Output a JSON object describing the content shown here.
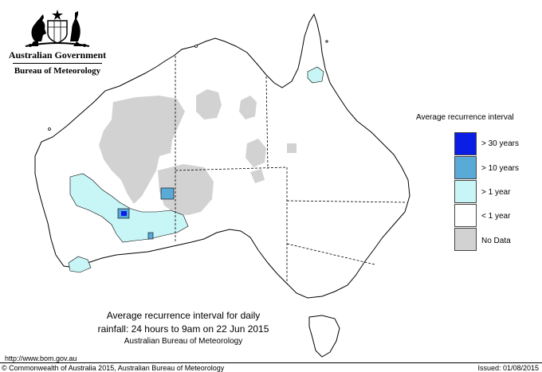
{
  "header": {
    "org_name": "Australian Government",
    "agency_name": "Bureau of Meteorology"
  },
  "legend": {
    "title": "Average recurrence interval",
    "items": [
      {
        "label": "> 30 years",
        "color": "#0a1ee6"
      },
      {
        "label": "> 10 years",
        "color": "#5aaad8"
      },
      {
        "label": "> 1 year",
        "color": "#c8f5f5"
      },
      {
        "label": "< 1 year",
        "color": "#ffffff"
      },
      {
        "label": "No Data",
        "color": "#d2d2d2"
      }
    ]
  },
  "caption": {
    "line1": "Average recurrence interval for daily",
    "line2": "rainfall: 24 hours to 9am on 22 Jun 2015",
    "line3": "Australian Bureau of Meteorology"
  },
  "footer": {
    "url": "http://www.bom.gov.au",
    "copyright": "© Commonwealth of Australia 2015, Australian Bureau of Meteorology",
    "issued": "Issued: 01/08/2015"
  }
}
